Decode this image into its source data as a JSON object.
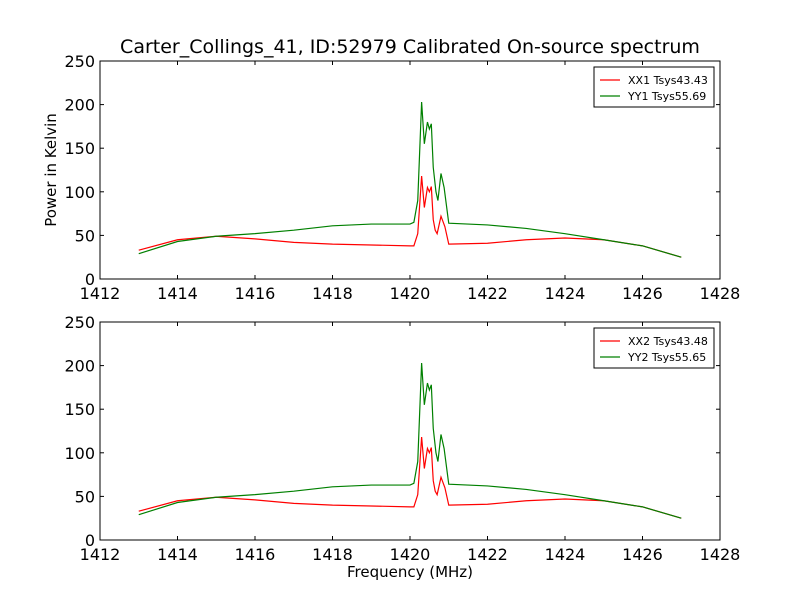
{
  "chart_data": [
    {
      "type": "line",
      "title": "Carter_Collings_41, ID:52979 Calibrated On-source spectrum",
      "xlabel": "",
      "ylabel": "Power in Kelvin",
      "xlim": [
        1412,
        1428
      ],
      "ylim": [
        0,
        250
      ],
      "xticks": [
        1412,
        1414,
        1416,
        1418,
        1420,
        1422,
        1424,
        1426,
        1428
      ],
      "yticks": [
        0,
        50,
        100,
        150,
        200,
        250
      ],
      "legend_position": "top-right",
      "series": [
        {
          "name": "XX1 Tsys43.43",
          "color": "#ff0000",
          "points": [
            [
              1413,
              33
            ],
            [
              1414,
              45
            ],
            [
              1415,
              49
            ],
            [
              1416,
              46
            ],
            [
              1417,
              42
            ],
            [
              1418,
              40
            ],
            [
              1419,
              39
            ],
            [
              1420,
              38
            ],
            [
              1420.1,
              38
            ],
            [
              1420.2,
              52
            ],
            [
              1420.3,
              118
            ],
            [
              1420.37,
              82
            ],
            [
              1420.45,
              105
            ],
            [
              1420.5,
              100
            ],
            [
              1420.55,
              106
            ],
            [
              1420.6,
              68
            ],
            [
              1420.65,
              56
            ],
            [
              1420.7,
              52
            ],
            [
              1420.8,
              72
            ],
            [
              1420.9,
              60
            ],
            [
              1421.0,
              40
            ],
            [
              1422,
              41
            ],
            [
              1423,
              45
            ],
            [
              1424,
              47
            ],
            [
              1425,
              45
            ],
            [
              1426,
              38
            ],
            [
              1427,
              25
            ]
          ]
        },
        {
          "name": "YY1 Tsys55.69",
          "color": "#008000",
          "points": [
            [
              1413,
              29
            ],
            [
              1414,
              43
            ],
            [
              1415,
              49
            ],
            [
              1416,
              52
            ],
            [
              1417,
              56
            ],
            [
              1418,
              61
            ],
            [
              1419,
              63
            ],
            [
              1420,
              63
            ],
            [
              1420.1,
              65
            ],
            [
              1420.2,
              90
            ],
            [
              1420.3,
              203
            ],
            [
              1420.37,
              155
            ],
            [
              1420.45,
              180
            ],
            [
              1420.5,
              172
            ],
            [
              1420.55,
              178
            ],
            [
              1420.6,
              128
            ],
            [
              1420.67,
              100
            ],
            [
              1420.72,
              90
            ],
            [
              1420.8,
              121
            ],
            [
              1420.88,
              105
            ],
            [
              1421.0,
              64
            ],
            [
              1422,
              62
            ],
            [
              1423,
              58
            ],
            [
              1424,
              52
            ],
            [
              1425,
              45
            ],
            [
              1426,
              38
            ],
            [
              1427,
              25
            ]
          ]
        }
      ]
    },
    {
      "type": "line",
      "title": "",
      "xlabel": "Frequency (MHz)",
      "ylabel": "",
      "xlim": [
        1412,
        1428
      ],
      "ylim": [
        0,
        250
      ],
      "xticks": [
        1412,
        1414,
        1416,
        1418,
        1420,
        1422,
        1424,
        1426,
        1428
      ],
      "yticks": [
        0,
        50,
        100,
        150,
        200,
        250
      ],
      "legend_position": "top-right",
      "series": [
        {
          "name": "XX2 Tsys43.48",
          "color": "#ff0000",
          "points": [
            [
              1413,
              33
            ],
            [
              1414,
              45
            ],
            [
              1415,
              49
            ],
            [
              1416,
              46
            ],
            [
              1417,
              42
            ],
            [
              1418,
              40
            ],
            [
              1419,
              39
            ],
            [
              1420,
              38
            ],
            [
              1420.1,
              38
            ],
            [
              1420.2,
              52
            ],
            [
              1420.3,
              118
            ],
            [
              1420.37,
              82
            ],
            [
              1420.45,
              105
            ],
            [
              1420.5,
              100
            ],
            [
              1420.55,
              106
            ],
            [
              1420.6,
              68
            ],
            [
              1420.65,
              56
            ],
            [
              1420.7,
              52
            ],
            [
              1420.8,
              72
            ],
            [
              1420.9,
              60
            ],
            [
              1421.0,
              40
            ],
            [
              1422,
              41
            ],
            [
              1423,
              45
            ],
            [
              1424,
              47
            ],
            [
              1425,
              45
            ],
            [
              1426,
              38
            ],
            [
              1427,
              25
            ]
          ]
        },
        {
          "name": "YY2 Tsys55.65",
          "color": "#008000",
          "points": [
            [
              1413,
              29
            ],
            [
              1414,
              43
            ],
            [
              1415,
              49
            ],
            [
              1416,
              52
            ],
            [
              1417,
              56
            ],
            [
              1418,
              61
            ],
            [
              1419,
              63
            ],
            [
              1420,
              63
            ],
            [
              1420.1,
              65
            ],
            [
              1420.2,
              90
            ],
            [
              1420.3,
              203
            ],
            [
              1420.37,
              155
            ],
            [
              1420.45,
              180
            ],
            [
              1420.5,
              172
            ],
            [
              1420.55,
              178
            ],
            [
              1420.6,
              128
            ],
            [
              1420.67,
              100
            ],
            [
              1420.72,
              90
            ],
            [
              1420.8,
              121
            ],
            [
              1420.88,
              105
            ],
            [
              1421.0,
              64
            ],
            [
              1422,
              62
            ],
            [
              1423,
              58
            ],
            [
              1424,
              52
            ],
            [
              1425,
              45
            ],
            [
              1426,
              38
            ],
            [
              1427,
              25
            ]
          ]
        }
      ]
    }
  ]
}
